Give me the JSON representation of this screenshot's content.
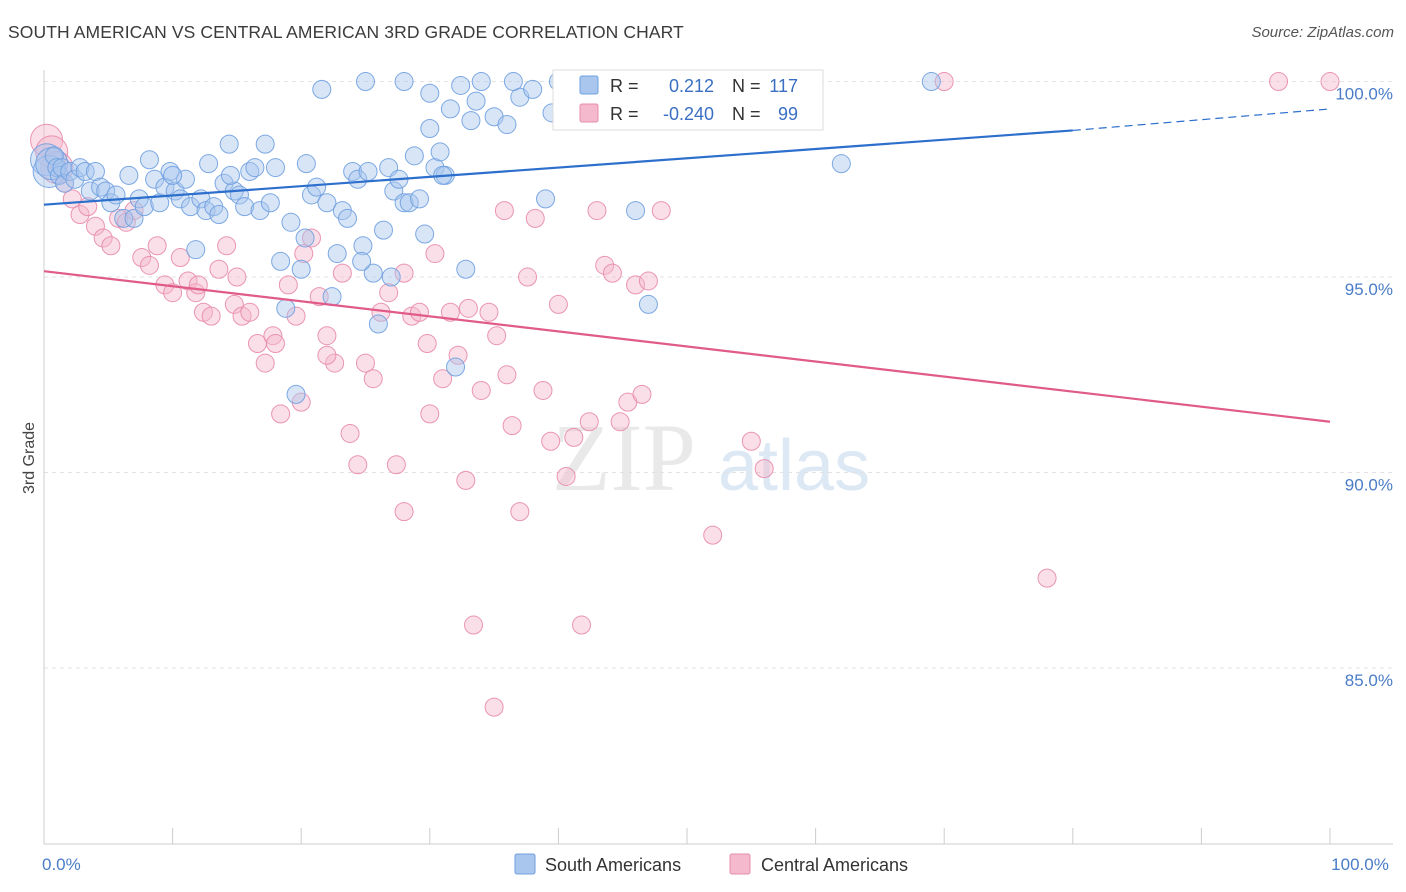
{
  "title": "SOUTH AMERICAN VS CENTRAL AMERICAN 3RD GRADE CORRELATION CHART",
  "source": "Source: ZipAtlas.com",
  "watermark": {
    "zip": "ZIP",
    "atlas": "atlas"
  },
  "chart_data": {
    "type": "scatter",
    "ylabel": "3rd Grade",
    "xlim": [
      0,
      100
    ],
    "ylim": [
      80.5,
      100.5
    ],
    "x_tick_labels": [
      {
        "value": 0,
        "label": "0.0%"
      },
      {
        "value": 100,
        "label": "100.0%"
      }
    ],
    "y_ticks": [
      {
        "value": 100,
        "label": "100.0%"
      },
      {
        "value": 95,
        "label": "95.0%"
      },
      {
        "value": 90,
        "label": "90.0%"
      },
      {
        "value": 85,
        "label": "85.0%"
      }
    ],
    "grid": true,
    "legend": {
      "placement": "top-center",
      "entries": [
        {
          "r_label": "R =",
          "r_value": "0.212",
          "n_label": "N =",
          "n_value": "117"
        },
        {
          "r_label": "R =",
          "r_value": "-0.240",
          "n_label": "N =",
          "n_value": "99"
        }
      ]
    },
    "series": [
      {
        "name": "South Americans",
        "color": "#6fa0e0",
        "fill": "#a9c6ee",
        "trend": {
          "x0": 0,
          "y0": 96.85,
          "x1": 80,
          "y1": 98.75,
          "dash_x1": 100,
          "dash_y1": 99.3,
          "color": "#2d6fcc"
        },
        "points": [
          [
            0.2,
            98.0
          ],
          [
            0.4,
            97.7
          ],
          [
            0.6,
            97.9
          ],
          [
            0.8,
            98.1
          ],
          [
            1.0,
            97.8
          ],
          [
            1.2,
            97.6
          ],
          [
            1.4,
            97.8
          ],
          [
            1.6,
            97.4
          ],
          [
            2.0,
            97.7
          ],
          [
            2.4,
            97.5
          ],
          [
            2.8,
            97.8
          ],
          [
            3.2,
            97.7
          ],
          [
            3.6,
            97.2
          ],
          [
            4.0,
            97.7
          ],
          [
            4.4,
            97.3
          ],
          [
            4.8,
            97.2
          ],
          [
            5.2,
            96.9
          ],
          [
            5.6,
            97.1
          ],
          [
            6.2,
            96.5
          ],
          [
            6.6,
            97.6
          ],
          [
            7.0,
            96.5
          ],
          [
            7.4,
            97.0
          ],
          [
            7.8,
            96.8
          ],
          [
            8.2,
            98.0
          ],
          [
            8.6,
            97.5
          ],
          [
            9.0,
            96.9
          ],
          [
            9.4,
            97.3
          ],
          [
            9.8,
            97.7
          ],
          [
            10.2,
            97.2
          ],
          [
            10.6,
            97.0
          ],
          [
            11.0,
            97.5
          ],
          [
            11.4,
            96.8
          ],
          [
            11.8,
            95.7
          ],
          [
            12.2,
            97.0
          ],
          [
            12.6,
            96.7
          ],
          [
            12.8,
            97.9
          ],
          [
            13.2,
            96.8
          ],
          [
            13.6,
            96.6
          ],
          [
            14.0,
            97.4
          ],
          [
            14.4,
            98.4
          ],
          [
            14.8,
            97.2
          ],
          [
            15.2,
            97.1
          ],
          [
            15.6,
            96.8
          ],
          [
            16.0,
            97.7
          ],
          [
            16.4,
            97.8
          ],
          [
            16.8,
            96.7
          ],
          [
            17.2,
            98.4
          ],
          [
            17.6,
            96.9
          ],
          [
            18.0,
            97.8
          ],
          [
            18.4,
            95.4
          ],
          [
            18.8,
            94.2
          ],
          [
            19.2,
            96.4
          ],
          [
            19.6,
            92.0
          ],
          [
            20.0,
            95.2
          ],
          [
            20.4,
            97.9
          ],
          [
            20.8,
            97.1
          ],
          [
            21.2,
            97.3
          ],
          [
            21.6,
            99.8
          ],
          [
            22.0,
            96.9
          ],
          [
            22.4,
            94.5
          ],
          [
            22.8,
            95.6
          ],
          [
            23.2,
            96.7
          ],
          [
            23.6,
            96.5
          ],
          [
            24.0,
            97.7
          ],
          [
            24.4,
            97.5
          ],
          [
            24.8,
            95.8
          ],
          [
            25.2,
            97.7
          ],
          [
            25.6,
            95.1
          ],
          [
            26.0,
            93.8
          ],
          [
            26.4,
            96.2
          ],
          [
            26.8,
            97.8
          ],
          [
            27.2,
            97.2
          ],
          [
            27.6,
            97.5
          ],
          [
            28.0,
            96.9
          ],
          [
            28.4,
            96.9
          ],
          [
            28.8,
            98.1
          ],
          [
            29.2,
            97.0
          ],
          [
            29.6,
            96.1
          ],
          [
            30.0,
            98.8
          ],
          [
            30.4,
            97.8
          ],
          [
            30.8,
            98.2
          ],
          [
            31.2,
            97.6
          ],
          [
            31.6,
            99.3
          ],
          [
            32.0,
            92.7
          ],
          [
            32.4,
            99.9
          ],
          [
            32.8,
            95.2
          ],
          [
            33.2,
            99.0
          ],
          [
            33.6,
            99.5
          ],
          [
            34.0,
            100.0
          ],
          [
            35.0,
            99.1
          ],
          [
            36.0,
            98.9
          ],
          [
            37.0,
            99.6
          ],
          [
            38.0,
            99.8
          ],
          [
            39.0,
            97.0
          ],
          [
            40.0,
            100.0
          ],
          [
            42.0,
            99.8
          ],
          [
            43.0,
            99.9
          ],
          [
            46.0,
            96.7
          ],
          [
            47.0,
            94.3
          ],
          [
            49.0,
            100.0
          ],
          [
            49.5,
            99.9
          ],
          [
            62.0,
            97.9
          ],
          [
            69.0,
            100.0
          ],
          [
            25.0,
            100.0
          ],
          [
            28.0,
            100.0
          ],
          [
            30.0,
            99.7
          ],
          [
            36.5,
            100.0
          ],
          [
            39.5,
            99.2
          ],
          [
            41.0,
            100.0
          ],
          [
            31.0,
            97.6
          ],
          [
            27.0,
            95.0
          ],
          [
            14.5,
            97.6
          ],
          [
            24.7,
            95.4
          ],
          [
            20.3,
            96.0
          ],
          [
            10.0,
            97.6
          ]
        ]
      },
      {
        "name": "Central Americans",
        "color": "#e88bab",
        "fill": "#f4b9cd",
        "trend": {
          "x0": 0,
          "y0": 95.15,
          "x1": 100,
          "y1": 91.3,
          "color": "#e05a8a"
        },
        "points": [
          [
            0.2,
            98.5
          ],
          [
            0.6,
            98.2
          ],
          [
            1.0,
            97.8
          ],
          [
            1.6,
            97.4
          ],
          [
            2.2,
            97.0
          ],
          [
            2.8,
            96.6
          ],
          [
            3.4,
            96.8
          ],
          [
            4.0,
            96.3
          ],
          [
            4.6,
            96.0
          ],
          [
            5.2,
            95.8
          ],
          [
            5.8,
            96.5
          ],
          [
            6.4,
            96.4
          ],
          [
            7.0,
            96.7
          ],
          [
            7.6,
            95.5
          ],
          [
            8.2,
            95.3
          ],
          [
            8.8,
            95.8
          ],
          [
            9.4,
            94.8
          ],
          [
            10.0,
            94.6
          ],
          [
            10.6,
            95.5
          ],
          [
            11.2,
            94.9
          ],
          [
            11.8,
            94.6
          ],
          [
            12.4,
            94.1
          ],
          [
            13.0,
            94.0
          ],
          [
            13.6,
            95.2
          ],
          [
            14.2,
            95.8
          ],
          [
            14.8,
            94.3
          ],
          [
            15.4,
            94.0
          ],
          [
            16.0,
            94.1
          ],
          [
            16.6,
            93.3
          ],
          [
            17.2,
            92.8
          ],
          [
            17.8,
            93.5
          ],
          [
            18.4,
            91.5
          ],
          [
            19.0,
            94.8
          ],
          [
            19.6,
            94.0
          ],
          [
            20.2,
            95.6
          ],
          [
            20.8,
            96.0
          ],
          [
            21.4,
            94.5
          ],
          [
            22.0,
            93.5
          ],
          [
            22.6,
            92.8
          ],
          [
            23.2,
            95.1
          ],
          [
            23.8,
            91.0
          ],
          [
            24.4,
            90.2
          ],
          [
            25.0,
            92.8
          ],
          [
            25.6,
            92.4
          ],
          [
            26.2,
            94.1
          ],
          [
            26.8,
            94.6
          ],
          [
            27.4,
            90.2
          ],
          [
            28.0,
            95.1
          ],
          [
            28.6,
            94.0
          ],
          [
            29.2,
            94.1
          ],
          [
            29.8,
            93.3
          ],
          [
            30.4,
            95.6
          ],
          [
            31.0,
            92.4
          ],
          [
            31.6,
            94.1
          ],
          [
            32.2,
            93.0
          ],
          [
            32.8,
            89.8
          ],
          [
            33.4,
            86.1
          ],
          [
            34.0,
            92.1
          ],
          [
            34.6,
            94.1
          ],
          [
            35.2,
            93.5
          ],
          [
            35.8,
            96.7
          ],
          [
            36.4,
            91.2
          ],
          [
            37.0,
            89.0
          ],
          [
            37.6,
            95.0
          ],
          [
            38.2,
            96.5
          ],
          [
            38.8,
            92.1
          ],
          [
            39.4,
            90.8
          ],
          [
            40.0,
            94.3
          ],
          [
            40.6,
            89.9
          ],
          [
            41.2,
            90.9
          ],
          [
            41.8,
            86.1
          ],
          [
            42.4,
            91.3
          ],
          [
            43.0,
            96.7
          ],
          [
            43.6,
            95.3
          ],
          [
            44.2,
            95.1
          ],
          [
            44.8,
            91.3
          ],
          [
            45.4,
            91.8
          ],
          [
            46.0,
            94.8
          ],
          [
            47.0,
            94.9
          ],
          [
            48.0,
            96.7
          ],
          [
            52.0,
            88.4
          ],
          [
            53.0,
            100.0
          ],
          [
            55.0,
            90.8
          ],
          [
            56.0,
            90.1
          ],
          [
            70.0,
            100.0
          ],
          [
            78.0,
            87.3
          ],
          [
            96.0,
            100.0
          ],
          [
            100.0,
            100.0
          ],
          [
            18.0,
            93.3
          ],
          [
            15.0,
            95.0
          ],
          [
            12.0,
            94.8
          ],
          [
            33.0,
            94.2
          ],
          [
            35.0,
            84.0
          ],
          [
            28.0,
            89.0
          ],
          [
            22.0,
            93.0
          ],
          [
            30.0,
            91.5
          ],
          [
            46.5,
            92.0
          ],
          [
            20.0,
            91.8
          ],
          [
            36.0,
            92.5
          ]
        ]
      }
    ]
  }
}
